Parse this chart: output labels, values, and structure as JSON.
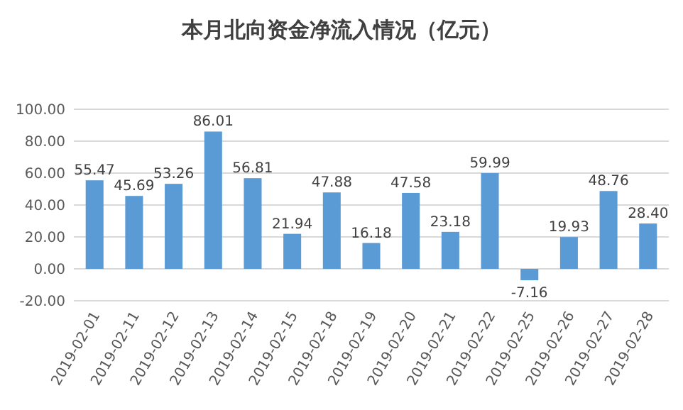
{
  "chart_data": {
    "type": "bar",
    "title": "本月北向资金净流入情况（亿元）",
    "categories": [
      "2019-02-01",
      "2019-02-11",
      "2019-02-12",
      "2019-02-13",
      "2019-02-14",
      "2019-02-15",
      "2019-02-18",
      "2019-02-19",
      "2019-02-20",
      "2019-02-21",
      "2019-02-22",
      "2019-02-25",
      "2019-02-26",
      "2019-02-27",
      "2019-02-28"
    ],
    "values": [
      55.47,
      45.69,
      53.26,
      86.01,
      56.81,
      21.94,
      47.88,
      16.18,
      47.58,
      23.18,
      59.99,
      -7.16,
      19.93,
      48.76,
      28.4
    ],
    "value_labels": [
      "55.47",
      "45.69",
      "53.26",
      "86.01",
      "56.81",
      "21.94",
      "47.88",
      "16.18",
      "47.58",
      "23.18",
      "59.99",
      "-7.16",
      "19.93",
      "48.76",
      "28.40"
    ],
    "color": "#5b9bd5",
    "ylim": [
      -20,
      100
    ],
    "yticks": [
      {
        "value": -20,
        "label": "-20.00"
      },
      {
        "value": 0,
        "label": "0.00"
      },
      {
        "value": 20,
        "label": "20.00"
      },
      {
        "value": 40,
        "label": "40.00"
      },
      {
        "value": 60,
        "label": "60.00"
      },
      {
        "value": 80,
        "label": "80.00"
      },
      {
        "value": 100,
        "label": "100.00"
      }
    ],
    "grid": true
  }
}
